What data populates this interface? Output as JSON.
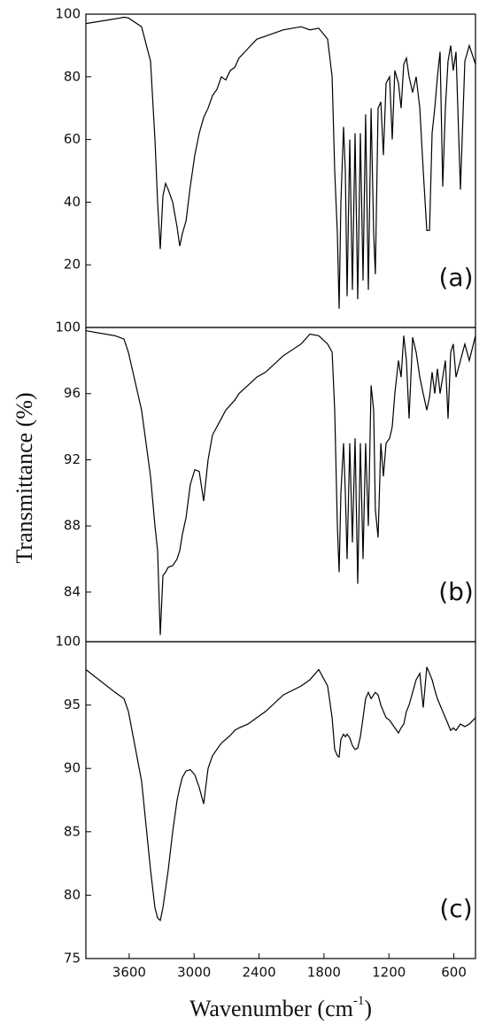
{
  "ylabel": "Transmittance (%)",
  "xlabel": [
    "Wavenumber (cm",
    "-1",
    ")"
  ],
  "chart_data": [
    {
      "type": "line",
      "annotation": "(a)",
      "color": "#000000",
      "xlim": [
        4000,
        400
      ],
      "ylim": [
        0,
        100
      ],
      "yticks": [
        20,
        40,
        60,
        80,
        100
      ],
      "x": [
        4000,
        3730,
        3648,
        3607,
        3485,
        3403,
        3362,
        3337,
        3313,
        3288,
        3264,
        3239,
        3198,
        3157,
        3133,
        3108,
        3075,
        3035,
        2994,
        2953,
        2912,
        2871,
        2830,
        2789,
        2748,
        2707,
        2666,
        2625,
        2585,
        2503,
        2421,
        2339,
        2175,
        2012,
        1930,
        1848,
        1766,
        1725,
        1701,
        1676,
        1660,
        1644,
        1619,
        1603,
        1586,
        1562,
        1537,
        1513,
        1488,
        1464,
        1439,
        1415,
        1390,
        1365,
        1341,
        1325,
        1300,
        1275,
        1251,
        1226,
        1194,
        1169,
        1145,
        1112,
        1087,
        1063,
        1038,
        1014,
        981,
        948,
        915,
        883,
        850,
        825,
        801,
        776,
        752,
        727,
        703,
        678,
        654,
        629,
        605,
        580,
        539,
        498,
        457,
        400
      ],
      "values": [
        97,
        98.5,
        99,
        98.8,
        96,
        85,
        60,
        40,
        25,
        42,
        46,
        44,
        40,
        32,
        26,
        30,
        34,
        45,
        55,
        62,
        67,
        70,
        74,
        76,
        80,
        79,
        82,
        83,
        86,
        89,
        92,
        93,
        95,
        96,
        95,
        95.5,
        92,
        80,
        50,
        30,
        6,
        40,
        64,
        50,
        10,
        60,
        12,
        62,
        9,
        62,
        15,
        68,
        12,
        70,
        30,
        17,
        70,
        72,
        55,
        78,
        80,
        60,
        82,
        78,
        70,
        84,
        86,
        80,
        75,
        80,
        70,
        50,
        31,
        31,
        62,
        70,
        80,
        88,
        45,
        70,
        85,
        90,
        82,
        88,
        44,
        85,
        90,
        84
      ]
    },
    {
      "type": "line",
      "annotation": "(b)",
      "color": "#000000",
      "xlim": [
        4000,
        400
      ],
      "ylim": [
        81,
        100
      ],
      "yticks": [
        84,
        88,
        92,
        96,
        100
      ],
      "x": [
        4000,
        3730,
        3648,
        3607,
        3485,
        3403,
        3362,
        3337,
        3313,
        3288,
        3264,
        3239,
        3198,
        3157,
        3133,
        3108,
        3075,
        3035,
        2994,
        2953,
        2912,
        2871,
        2830,
        2789,
        2748,
        2707,
        2666,
        2625,
        2585,
        2503,
        2421,
        2339,
        2175,
        2012,
        1930,
        1848,
        1766,
        1725,
        1701,
        1676,
        1660,
        1644,
        1619,
        1603,
        1586,
        1562,
        1537,
        1513,
        1488,
        1464,
        1439,
        1415,
        1390,
        1365,
        1341,
        1325,
        1300,
        1275,
        1251,
        1226,
        1194,
        1169,
        1145,
        1112,
        1087,
        1063,
        1038,
        1014,
        981,
        948,
        915,
        883,
        850,
        825,
        801,
        776,
        752,
        727,
        703,
        678,
        654,
        629,
        605,
        580,
        539,
        498,
        457,
        400
      ],
      "values": [
        99.8,
        99.5,
        99.3,
        98.5,
        95,
        91,
        88,
        86.5,
        81.4,
        85,
        85.2,
        85.5,
        85.6,
        86,
        86.5,
        87.5,
        88.5,
        90.5,
        91.4,
        91.3,
        89.5,
        92,
        93.5,
        94,
        94.5,
        95,
        95.3,
        95.6,
        96,
        96.5,
        97,
        97.3,
        98.3,
        99,
        99.6,
        99.5,
        99,
        98.5,
        95,
        88,
        85.2,
        90,
        93,
        90,
        86,
        93,
        87,
        93.3,
        84.5,
        93,
        86,
        93,
        88,
        96.5,
        95,
        89,
        87.3,
        93,
        91,
        93,
        93.3,
        94,
        96,
        98,
        97,
        99.5,
        98,
        94.5,
        99.4,
        98.5,
        97,
        96,
        95,
        95.8,
        97.3,
        96,
        97.5,
        96,
        97,
        98,
        94.5,
        98.5,
        99,
        97,
        98,
        99,
        98,
        99.5
      ]
    },
    {
      "type": "line",
      "annotation": "(c)",
      "color": "#000000",
      "xlim": [
        4000,
        400
      ],
      "ylim": [
        75,
        100
      ],
      "yticks": [
        75,
        80,
        85,
        90,
        95,
        100
      ],
      "xticks": [
        3600,
        3000,
        2400,
        1800,
        1200,
        600
      ],
      "x": [
        4000,
        3730,
        3648,
        3607,
        3485,
        3403,
        3362,
        3337,
        3313,
        3288,
        3264,
        3239,
        3198,
        3157,
        3133,
        3108,
        3075,
        3035,
        2994,
        2953,
        2912,
        2871,
        2830,
        2789,
        2748,
        2707,
        2666,
        2625,
        2585,
        2503,
        2421,
        2339,
        2175,
        2012,
        1930,
        1848,
        1766,
        1725,
        1701,
        1676,
        1660,
        1644,
        1619,
        1603,
        1586,
        1562,
        1537,
        1513,
        1488,
        1464,
        1439,
        1415,
        1390,
        1365,
        1341,
        1325,
        1300,
        1275,
        1251,
        1226,
        1194,
        1169,
        1145,
        1112,
        1087,
        1063,
        1038,
        1014,
        981,
        948,
        915,
        883,
        850,
        825,
        801,
        776,
        752,
        727,
        703,
        678,
        654,
        629,
        605,
        580,
        539,
        498,
        457,
        400
      ],
      "values": [
        97.8,
        96,
        95.5,
        94.5,
        89,
        82,
        79,
        78.2,
        78,
        79,
        80.5,
        82,
        85,
        87.5,
        88.5,
        89.3,
        89.8,
        89.9,
        89.5,
        88.5,
        87.2,
        90,
        91,
        91.5,
        92,
        92.3,
        92.6,
        93,
        93.2,
        93.5,
        94,
        94.5,
        95.8,
        96.5,
        97,
        97.8,
        96.5,
        94,
        91.5,
        91,
        90.9,
        92.3,
        92.7,
        92.5,
        92.7,
        92.4,
        91.8,
        91.5,
        91.6,
        92.5,
        94,
        95.5,
        96,
        95.5,
        95.8,
        96,
        95.8,
        95,
        94.5,
        94,
        93.8,
        93.5,
        93.2,
        92.8,
        93.2,
        93.5,
        94.5,
        95,
        96,
        97,
        97.5,
        94.8,
        98,
        97.5,
        97,
        96.2,
        95.5,
        95,
        94.5,
        94,
        93.5,
        93,
        93.2,
        93,
        93.5,
        93.3,
        93.5,
        94
      ]
    }
  ]
}
